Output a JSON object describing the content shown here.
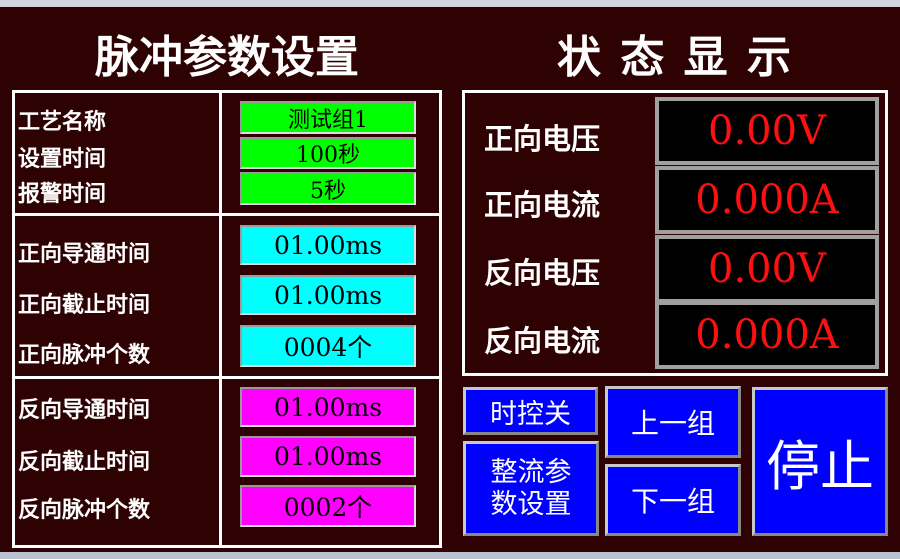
{
  "left_title": "脉冲参数设置",
  "right_title": "状 态 显 示",
  "group1": [
    {
      "label": "工艺名称",
      "value": "测试组1"
    },
    {
      "label": "设置时间",
      "value": "100秒"
    },
    {
      "label": "报警时间",
      "value": "5秒"
    }
  ],
  "forward": [
    {
      "label": "正向导通时间",
      "value": "01.00ms"
    },
    {
      "label": "正向截止时间",
      "value": "01.00ms"
    },
    {
      "label": "正向脉冲个数",
      "value": "0004个"
    }
  ],
  "reverse": [
    {
      "label": "反向导通时间",
      "value": "01.00ms"
    },
    {
      "label": "反向截止时间",
      "value": "01.00ms"
    },
    {
      "label": "反向脉冲个数",
      "value": "0002个"
    }
  ],
  "status": [
    {
      "label": "正向电压",
      "value": "0.00V"
    },
    {
      "label": "正向电流",
      "value": "0.000A"
    },
    {
      "label": "反向电压",
      "value": "0.00V"
    },
    {
      "label": "反向电流",
      "value": "0.000A"
    }
  ],
  "buttons": {
    "timer_off": "时控关",
    "rectifier_settings": "整流参数设置",
    "prev_group": "上一组",
    "next_group": "下一组",
    "stop": "停止"
  },
  "colors": {
    "background": "#2e0202",
    "group1_field": "#00ff00",
    "forward_field": "#00ffff",
    "reverse_field": "#ff00ff",
    "display_text": "#ff1010",
    "button": "#0000ff"
  }
}
